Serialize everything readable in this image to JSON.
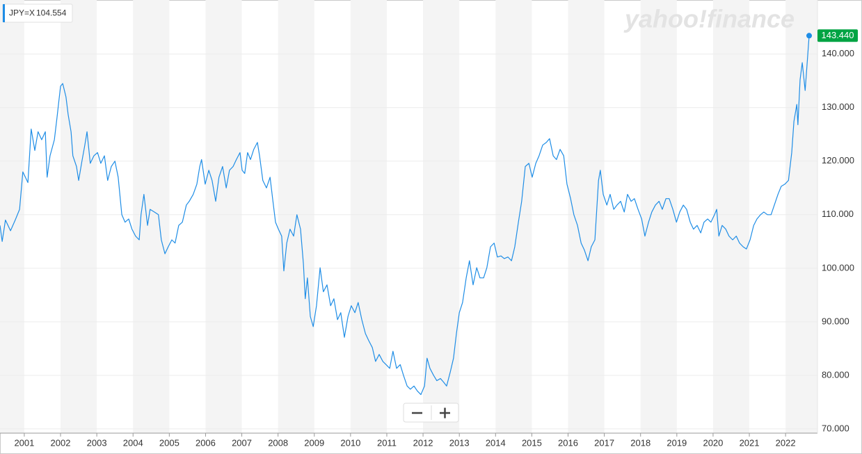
{
  "chart_data": {
    "type": "line",
    "tooltip": {
      "symbol": "JPY=X",
      "value": "104.554"
    },
    "logo": "yahoo!finance",
    "last_label": "143.440",
    "color": "#1e8de6",
    "grid": true,
    "xlim": [
      2000.33,
      2022.88
    ],
    "xticks": [
      2001,
      2002,
      2003,
      2004,
      2005,
      2006,
      2007,
      2008,
      2009,
      2010,
      2011,
      2012,
      2013,
      2014,
      2015,
      2016,
      2017,
      2018,
      2019,
      2020,
      2021,
      2022
    ],
    "ylim": [
      69.2,
      150.1
    ],
    "yticks": [
      {
        "value": 70,
        "label": "70.000"
      },
      {
        "value": 80,
        "label": "80.000"
      },
      {
        "value": 90,
        "label": "90.000"
      },
      {
        "value": 100,
        "label": "100.000"
      },
      {
        "value": 110,
        "label": "110.000"
      },
      {
        "value": 120,
        "label": "120.000"
      },
      {
        "value": 130,
        "label": "130.000"
      },
      {
        "value": 140,
        "label": "140.000"
      }
    ],
    "x": [
      2000.33,
      2000.39,
      2000.48,
      2000.62,
      2000.75,
      2000.87,
      2000.96,
      2001.1,
      2001.19,
      2001.29,
      2001.38,
      2001.48,
      2001.58,
      2001.63,
      2001.71,
      2001.83,
      2001.9,
      2002.0,
      2002.06,
      2002.15,
      2002.21,
      2002.29,
      2002.34,
      2002.44,
      2002.5,
      2002.59,
      2002.67,
      2002.73,
      2002.82,
      2002.92,
      2003.02,
      2003.11,
      2003.21,
      2003.3,
      2003.4,
      2003.5,
      2003.59,
      2003.69,
      2003.78,
      2003.88,
      2003.97,
      2004.07,
      2004.17,
      2004.22,
      2004.3,
      2004.4,
      2004.47,
      2004.59,
      2004.7,
      2004.78,
      2004.88,
      2004.97,
      2005.07,
      2005.16,
      2005.26,
      2005.36,
      2005.47,
      2005.55,
      2005.66,
      2005.76,
      2005.84,
      2005.89,
      2005.99,
      2006.09,
      2006.18,
      2006.28,
      2006.37,
      2006.47,
      2006.57,
      2006.66,
      2006.76,
      2006.85,
      2006.95,
      2007.01,
      2007.08,
      2007.16,
      2007.24,
      2007.33,
      2007.43,
      2007.49,
      2007.58,
      2007.68,
      2007.78,
      2007.85,
      2007.93,
      2008.01,
      2008.1,
      2008.16,
      2008.24,
      2008.33,
      2008.43,
      2008.52,
      2008.62,
      2008.7,
      2008.75,
      2008.81,
      2008.89,
      2008.97,
      2009.06,
      2009.16,
      2009.25,
      2009.35,
      2009.45,
      2009.54,
      2009.64,
      2009.73,
      2009.83,
      2009.93,
      2010.02,
      2010.12,
      2010.21,
      2010.31,
      2010.41,
      2010.5,
      2010.6,
      2010.69,
      2010.79,
      2010.89,
      2010.98,
      2011.08,
      2011.17,
      2011.27,
      2011.37,
      2011.46,
      2011.56,
      2011.65,
      2011.75,
      2011.84,
      2011.94,
      2012.04,
      2012.11,
      2012.19,
      2012.29,
      2012.38,
      2012.48,
      2012.57,
      2012.65,
      2012.75,
      2012.84,
      2012.92,
      2013.0,
      2013.09,
      2013.19,
      2013.28,
      2013.38,
      2013.48,
      2013.57,
      2013.67,
      2013.76,
      2013.86,
      2013.96,
      2014.05,
      2014.15,
      2014.24,
      2014.34,
      2014.44,
      2014.53,
      2014.63,
      2014.72,
      2014.82,
      2014.92,
      2015.01,
      2015.11,
      2015.2,
      2015.3,
      2015.4,
      2015.49,
      2015.59,
      2015.68,
      2015.78,
      2015.88,
      2015.97,
      2016.07,
      2016.16,
      2016.26,
      2016.36,
      2016.45,
      2016.55,
      2016.64,
      2016.74,
      2016.84,
      2016.89,
      2016.97,
      2017.07,
      2017.16,
      2017.26,
      2017.35,
      2017.45,
      2017.55,
      2017.64,
      2017.74,
      2017.83,
      2017.93,
      2018.03,
      2018.12,
      2018.22,
      2018.31,
      2018.41,
      2018.51,
      2018.6,
      2018.7,
      2018.79,
      2018.89,
      2018.99,
      2019.08,
      2019.18,
      2019.27,
      2019.37,
      2019.46,
      2019.56,
      2019.66,
      2019.75,
      2019.85,
      2019.94,
      2020.04,
      2020.1,
      2020.16,
      2020.25,
      2020.35,
      2020.44,
      2020.54,
      2020.64,
      2020.73,
      2020.83,
      2020.92,
      2021.02,
      2021.12,
      2021.21,
      2021.31,
      2021.4,
      2021.5,
      2021.6,
      2021.69,
      2021.79,
      2021.88,
      2021.98,
      2022.08,
      2022.17,
      2022.23,
      2022.31,
      2022.34,
      2022.4,
      2022.46,
      2022.54,
      2022.59,
      2022.65
    ],
    "values": [
      108,
      105,
      109,
      107,
      109,
      111,
      118,
      116,
      126,
      122,
      125.5,
      124,
      125.5,
      117,
      121,
      124,
      128,
      134,
      134.5,
      132,
      128.7,
      125.5,
      121,
      119,
      116.4,
      120,
      123,
      125.5,
      119.6,
      121,
      121.6,
      119.6,
      121,
      116.4,
      119,
      120,
      117,
      110,
      108.6,
      109.2,
      107.3,
      106,
      105.3,
      110,
      113.8,
      108,
      111,
      110.5,
      110,
      105.3,
      102.7,
      104,
      105.3,
      104.7,
      108,
      108.6,
      111.8,
      112.5,
      113.8,
      115.7,
      119,
      120.3,
      115.7,
      118.3,
      116.4,
      112.5,
      117,
      119,
      115,
      118.3,
      119,
      120.3,
      121.6,
      118.3,
      117.7,
      121.6,
      120.3,
      122.2,
      123.5,
      121,
      116.4,
      115,
      117,
      113,
      108.6,
      107.3,
      106,
      99.5,
      104.7,
      107.3,
      106,
      110,
      107.3,
      100.8,
      94.3,
      98.2,
      91,
      89.1,
      93,
      100.1,
      95.6,
      96.9,
      93,
      94.3,
      90.4,
      91.7,
      87.1,
      91,
      93,
      91.7,
      93.6,
      90.4,
      87.8,
      86.5,
      85.2,
      82.6,
      83.9,
      82.6,
      82,
      81.3,
      84.5,
      81.3,
      82,
      80,
      78,
      77.4,
      78,
      77.1,
      76.4,
      78,
      83.2,
      81.3,
      80,
      79,
      79.4,
      78.7,
      78,
      80.6,
      83.2,
      87.8,
      91.7,
      93.6,
      98.2,
      101.4,
      96.9,
      100.1,
      98.2,
      98.2,
      100.1,
      104,
      104.7,
      102.1,
      102.3,
      101.8,
      102.1,
      101.4,
      104,
      108.6,
      112.5,
      119,
      119.6,
      117,
      119.6,
      121,
      123,
      123.5,
      124.2,
      121,
      120.3,
      122.2,
      121,
      115.7,
      113,
      110,
      108,
      104.7,
      103.4,
      101.4,
      104,
      105.3,
      116.4,
      118.3,
      113.8,
      111.8,
      113.8,
      111,
      111.8,
      112.5,
      110.5,
      113.8,
      112.5,
      113,
      111,
      109.2,
      106,
      108.6,
      110.5,
      111.8,
      112.5,
      111,
      113,
      113,
      111,
      108.6,
      110.5,
      111.8,
      111,
      108.6,
      107.3,
      108,
      106.6,
      108.6,
      109.2,
      108.6,
      110,
      111,
      106,
      108,
      107.3,
      106,
      105.3,
      106,
      104.7,
      104,
      103.6,
      105.3,
      108,
      109.2,
      110,
      110.5,
      110,
      110,
      111.8,
      113.8,
      115.3,
      115.7,
      116.4,
      121.6,
      127.4,
      130.6,
      126.8,
      135.2,
      138.4,
      133.2,
      137.8,
      143.44
    ]
  }
}
